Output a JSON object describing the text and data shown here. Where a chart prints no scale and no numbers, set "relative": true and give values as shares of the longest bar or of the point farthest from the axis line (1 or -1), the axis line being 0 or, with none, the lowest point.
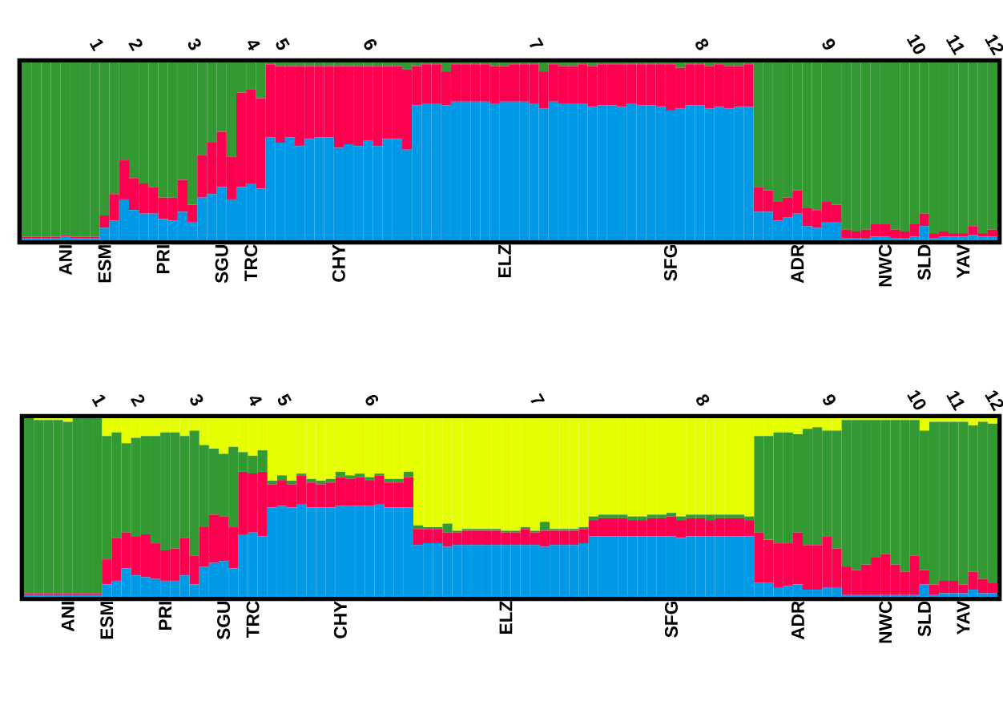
{
  "chart_data": [
    {
      "type": "bar",
      "stacked": true,
      "relative": true,
      "categories": [
        null,
        null,
        null,
        null,
        "ANI",
        null,
        null,
        null,
        "ESM",
        null,
        null,
        null,
        null,
        null,
        "PRI",
        null,
        null,
        null,
        null,
        null,
        "SGU",
        null,
        null,
        "TRC",
        null,
        null,
        null,
        null,
        null,
        null,
        null,
        null,
        "CHY",
        null,
        null,
        null,
        null,
        null,
        null,
        null,
        null,
        null,
        null,
        null,
        null,
        null,
        null,
        null,
        null,
        "ELZ",
        null,
        null,
        null,
        null,
        null,
        null,
        null,
        null,
        null,
        null,
        null,
        null,
        null,
        null,
        null,
        null,
        "SFG",
        null,
        null,
        null,
        null,
        null,
        null,
        null,
        null,
        null,
        null,
        null,
        null,
        "ADR",
        null,
        null,
        null,
        null,
        null,
        null,
        null,
        null,
        "NWC",
        null,
        null,
        null,
        "SLD",
        null,
        null,
        null,
        "YAV",
        null,
        null,
        null
      ],
      "series": [
        {
          "color": "#0099e6",
          "values": [
            0.01,
            0.01,
            0.01,
            0.01,
            0.02,
            0.01,
            0.01,
            0.01,
            0.07,
            0.11,
            0.23,
            0.17,
            0.15,
            0.15,
            0.12,
            0.11,
            0.16,
            0.1,
            0.24,
            0.26,
            0.3,
            0.23,
            0.3,
            0.32,
            0.29,
            0.58,
            0.55,
            0.58,
            0.53,
            0.57,
            0.58,
            0.58,
            0.52,
            0.54,
            0.53,
            0.56,
            0.53,
            0.57,
            0.57,
            0.51,
            0.76,
            0.77,
            0.77,
            0.76,
            0.78,
            0.78,
            0.78,
            0.78,
            0.77,
            0.78,
            0.78,
            0.78,
            0.77,
            0.74,
            0.78,
            0.77,
            0.77,
            0.77,
            0.75,
            0.76,
            0.76,
            0.75,
            0.77,
            0.76,
            0.76,
            0.75,
            0.73,
            0.74,
            0.76,
            0.76,
            0.74,
            0.75,
            0.74,
            0.75,
            0.75,
            0.16,
            0.16,
            0.11,
            0.13,
            0.15,
            0.08,
            0.07,
            0.1,
            0.1,
            0.01,
            0.01,
            0.01,
            0.02,
            0.02,
            0.01,
            0.01,
            0.02,
            0.08,
            0.01,
            0.02,
            0.02,
            0.02,
            0.03,
            0.02,
            0.02
          ]
        },
        {
          "color": "#ff0050",
          "values": [
            0.01,
            0.01,
            0.01,
            0.01,
            0.01,
            0.01,
            0.01,
            0.01,
            0.07,
            0.15,
            0.22,
            0.18,
            0.17,
            0.15,
            0.12,
            0.13,
            0.18,
            0.1,
            0.24,
            0.29,
            0.31,
            0.24,
            0.53,
            0.53,
            0.51,
            0.41,
            0.43,
            0.4,
            0.45,
            0.41,
            0.4,
            0.4,
            0.46,
            0.44,
            0.45,
            0.42,
            0.45,
            0.41,
            0.41,
            0.45,
            0.22,
            0.22,
            0.22,
            0.19,
            0.21,
            0.21,
            0.21,
            0.21,
            0.21,
            0.2,
            0.21,
            0.21,
            0.22,
            0.21,
            0.21,
            0.21,
            0.21,
            0.22,
            0.23,
            0.23,
            0.23,
            0.24,
            0.22,
            0.23,
            0.23,
            0.24,
            0.26,
            0.23,
            0.23,
            0.23,
            0.24,
            0.24,
            0.24,
            0.23,
            0.24,
            0.14,
            0.12,
            0.11,
            0.11,
            0.13,
            0.1,
            0.1,
            0.12,
            0.1,
            0.05,
            0.04,
            0.05,
            0.07,
            0.07,
            0.05,
            0.04,
            0.07,
            0.07,
            0.03,
            0.03,
            0.02,
            0.02,
            0.05,
            0.02,
            0.04
          ]
        },
        {
          "color": "#339933",
          "values": [
            0.98,
            0.98,
            0.98,
            0.98,
            0.97,
            0.98,
            0.98,
            0.98,
            0.86,
            0.74,
            0.55,
            0.65,
            0.68,
            0.7,
            0.76,
            0.76,
            0.66,
            0.8,
            0.52,
            0.45,
            0.39,
            0.53,
            0.17,
            0.15,
            0.2,
            0.01,
            0.02,
            0.02,
            0.02,
            0.02,
            0.02,
            0.02,
            0.02,
            0.02,
            0.02,
            0.02,
            0.02,
            0.02,
            0.02,
            0.04,
            0.02,
            0.01,
            0.01,
            0.05,
            0.01,
            0.01,
            0.01,
            0.01,
            0.02,
            0.02,
            0.01,
            0.01,
            0.01,
            0.05,
            0.01,
            0.02,
            0.02,
            0.01,
            0.02,
            0.01,
            0.01,
            0.01,
            0.01,
            0.01,
            0.01,
            0.01,
            0.01,
            0.03,
            0.01,
            0.01,
            0.02,
            0.01,
            0.02,
            0.02,
            0.01,
            0.7,
            0.72,
            0.78,
            0.76,
            0.72,
            0.82,
            0.83,
            0.78,
            0.8,
            0.94,
            0.95,
            0.94,
            0.91,
            0.91,
            0.94,
            0.95,
            0.91,
            0.85,
            0.96,
            0.95,
            0.96,
            0.96,
            0.92,
            0.96,
            0.94
          ]
        }
      ],
      "annotations": [
        "1",
        "2",
        "3",
        "4",
        "5",
        "6",
        "7",
        "8",
        "9",
        "10",
        "11",
        "12"
      ]
    },
    {
      "type": "bar",
      "stacked": true,
      "relative": true,
      "categories": [
        null,
        null,
        null,
        null,
        "ANI",
        null,
        null,
        null,
        "ESM",
        null,
        null,
        null,
        null,
        null,
        "PRI",
        null,
        null,
        null,
        null,
        null,
        "SGU",
        null,
        null,
        "TRC",
        null,
        null,
        null,
        null,
        null,
        null,
        null,
        null,
        "CHY",
        null,
        null,
        null,
        null,
        null,
        null,
        null,
        null,
        null,
        null,
        null,
        null,
        null,
        null,
        null,
        null,
        "ELZ",
        null,
        null,
        null,
        null,
        null,
        null,
        null,
        null,
        null,
        null,
        null,
        null,
        null,
        null,
        null,
        null,
        "SFG",
        null,
        null,
        null,
        null,
        null,
        null,
        null,
        null,
        null,
        null,
        null,
        null,
        "ADR",
        null,
        null,
        null,
        null,
        null,
        null,
        null,
        null,
        "NWC",
        null,
        null,
        null,
        "SLD",
        null,
        null,
        null,
        "YAV",
        null,
        null,
        null
      ],
      "series": [
        {
          "color": "#0099e6",
          "values": [
            0.01,
            0.01,
            0.01,
            0.01,
            0.01,
            0.01,
            0.01,
            0.01,
            0.07,
            0.09,
            0.16,
            0.12,
            0.11,
            0.1,
            0.09,
            0.09,
            0.12,
            0.07,
            0.17,
            0.19,
            0.2,
            0.16,
            0.35,
            0.36,
            0.34,
            0.5,
            0.51,
            0.5,
            0.52,
            0.5,
            0.5,
            0.5,
            0.51,
            0.51,
            0.51,
            0.51,
            0.52,
            0.5,
            0.5,
            0.5,
            0.29,
            0.3,
            0.3,
            0.28,
            0.29,
            0.29,
            0.29,
            0.29,
            0.29,
            0.29,
            0.29,
            0.29,
            0.29,
            0.28,
            0.29,
            0.29,
            0.29,
            0.3,
            0.34,
            0.34,
            0.34,
            0.34,
            0.34,
            0.34,
            0.34,
            0.34,
            0.34,
            0.33,
            0.34,
            0.34,
            0.34,
            0.34,
            0.34,
            0.34,
            0.34,
            0.08,
            0.08,
            0.05,
            0.06,
            0.07,
            0.04,
            0.04,
            0.05,
            0.05,
            0.01,
            0.01,
            0.01,
            0.01,
            0.01,
            0.01,
            0.01,
            0.01,
            0.07,
            0.01,
            0.02,
            0.02,
            0.02,
            0.04,
            0.02,
            0.02
          ]
        },
        {
          "color": "#ff0050",
          "values": [
            0.01,
            0.01,
            0.01,
            0.01,
            0.01,
            0.01,
            0.01,
            0.01,
            0.14,
            0.24,
            0.2,
            0.22,
            0.24,
            0.2,
            0.17,
            0.18,
            0.21,
            0.16,
            0.22,
            0.27,
            0.25,
            0.23,
            0.35,
            0.33,
            0.36,
            0.13,
            0.14,
            0.13,
            0.16,
            0.14,
            0.13,
            0.14,
            0.16,
            0.15,
            0.16,
            0.14,
            0.16,
            0.14,
            0.14,
            0.17,
            0.09,
            0.08,
            0.08,
            0.08,
            0.07,
            0.08,
            0.08,
            0.08,
            0.08,
            0.07,
            0.07,
            0.09,
            0.07,
            0.09,
            0.08,
            0.08,
            0.08,
            0.08,
            0.09,
            0.1,
            0.1,
            0.1,
            0.09,
            0.09,
            0.1,
            0.1,
            0.11,
            0.1,
            0.1,
            0.1,
            0.09,
            0.1,
            0.1,
            0.1,
            0.09,
            0.28,
            0.24,
            0.25,
            0.24,
            0.29,
            0.25,
            0.25,
            0.29,
            0.22,
            0.16,
            0.14,
            0.17,
            0.21,
            0.23,
            0.17,
            0.13,
            0.22,
            0.08,
            0.06,
            0.07,
            0.07,
            0.05,
            0.1,
            0.08,
            0.06
          ]
        },
        {
          "color": "#339933",
          "values": [
            0.98,
            0.97,
            0.97,
            0.97,
            0.96,
            0.98,
            0.98,
            0.98,
            0.69,
            0.59,
            0.5,
            0.55,
            0.55,
            0.6,
            0.66,
            0.65,
            0.57,
            0.7,
            0.46,
            0.37,
            0.35,
            0.45,
            0.11,
            0.1,
            0.12,
            0.02,
            0.03,
            0.02,
            0.01,
            0.02,
            0.02,
            0.02,
            0.03,
            0.02,
            0.02,
            0.02,
            0.01,
            0.02,
            0.02,
            0.03,
            0.02,
            0.01,
            0.01,
            0.05,
            0.01,
            0.01,
            0.01,
            0.01,
            0.01,
            0.01,
            0.01,
            0.01,
            0.01,
            0.05,
            0.01,
            0.01,
            0.01,
            0.01,
            0.02,
            0.02,
            0.02,
            0.02,
            0.02,
            0.02,
            0.02,
            0.02,
            0.02,
            0.02,
            0.02,
            0.02,
            0.03,
            0.02,
            0.02,
            0.02,
            0.02,
            0.54,
            0.58,
            0.62,
            0.62,
            0.55,
            0.65,
            0.66,
            0.59,
            0.66,
            0.82,
            0.84,
            0.81,
            0.77,
            0.75,
            0.81,
            0.85,
            0.76,
            0.78,
            0.91,
            0.89,
            0.89,
            0.91,
            0.82,
            0.88,
            0.89
          ]
        },
        {
          "color": "#e6ff00",
          "values": [
            0.0,
            0.01,
            0.01,
            0.01,
            0.02,
            0.0,
            0.0,
            0.0,
            0.1,
            0.08,
            0.14,
            0.11,
            0.1,
            0.1,
            0.08,
            0.08,
            0.1,
            0.07,
            0.15,
            0.17,
            0.2,
            0.16,
            0.19,
            0.21,
            0.18,
            0.35,
            0.32,
            0.35,
            0.31,
            0.34,
            0.35,
            0.34,
            0.3,
            0.32,
            0.31,
            0.33,
            0.31,
            0.34,
            0.34,
            0.3,
            0.6,
            0.61,
            0.61,
            0.59,
            0.63,
            0.62,
            0.62,
            0.62,
            0.62,
            0.63,
            0.63,
            0.61,
            0.63,
            0.58,
            0.62,
            0.62,
            0.62,
            0.61,
            0.55,
            0.54,
            0.54,
            0.54,
            0.55,
            0.55,
            0.54,
            0.54,
            0.53,
            0.55,
            0.54,
            0.54,
            0.54,
            0.54,
            0.54,
            0.54,
            0.55,
            0.1,
            0.1,
            0.08,
            0.08,
            0.09,
            0.06,
            0.05,
            0.07,
            0.07,
            0.01,
            0.01,
            0.01,
            0.01,
            0.01,
            0.01,
            0.01,
            0.01,
            0.07,
            0.02,
            0.02,
            0.02,
            0.02,
            0.04,
            0.02,
            0.03
          ]
        }
      ],
      "annotations": [
        "1",
        "2",
        "3",
        "4",
        "5",
        "6",
        "7",
        "8",
        "9",
        "10",
        "11",
        "12"
      ]
    }
  ]
}
